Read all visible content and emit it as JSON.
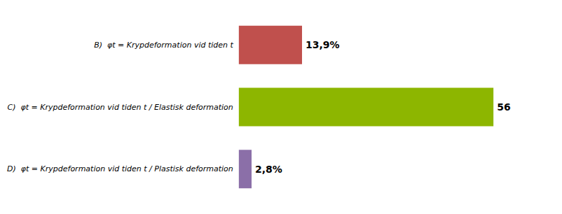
{
  "chart_data": {
    "type": "bar",
    "orientation": "horizontal",
    "categories": [
      "B)  φt = Krypdeformation vid tiden t",
      "C)  φt = Krypdeformation vid tiden t / Elastisk deformation",
      "D)  φt = Krypdeformation vid tiden t / Plastisk deformation"
    ],
    "values": [
      13.9,
      56.0,
      2.8
    ],
    "value_labels": [
      "13,9%",
      "56",
      "2,8%"
    ],
    "colors": [
      "#c0504d",
      "#8db600",
      "#8b6fa8"
    ],
    "xlim": [
      0,
      68
    ],
    "data_labels": true,
    "tick_labels": "y",
    "grid": false
  }
}
